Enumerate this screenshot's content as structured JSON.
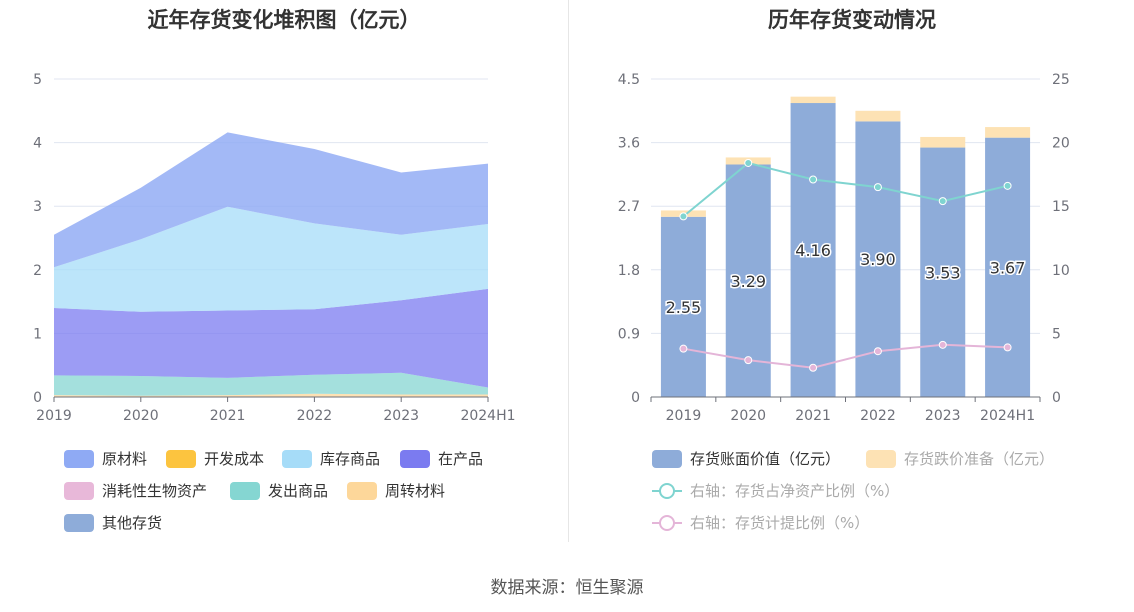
{
  "footer": {
    "source": "数据来源：恒生聚源"
  },
  "chart_data": [
    {
      "type": "area",
      "stacked": true,
      "title": "近年存货变化堆积图（亿元）",
      "categories": [
        "2019",
        "2020",
        "2021",
        "2022",
        "2023",
        "2024H1"
      ],
      "ylim": [
        0,
        5
      ],
      "yticks": [
        "0",
        "1",
        "2",
        "3",
        "4",
        "5"
      ],
      "series": [
        {
          "name": "原材料",
          "color": "#8faaf4",
          "values": [
            0.51,
            0.81,
            1.17,
            1.17,
            0.98,
            0.95
          ]
        },
        {
          "name": "开发成本",
          "color": "#fcc43f",
          "values": [
            0,
            0,
            0,
            0,
            0,
            0
          ]
        },
        {
          "name": "库存商品",
          "color": "#a6dcf8",
          "values": [
            0.64,
            1.14,
            1.63,
            1.35,
            1.03,
            1.02
          ]
        },
        {
          "name": "在产品",
          "color": "#7b7bf0",
          "values": [
            1.06,
            1.01,
            1.06,
            1.03,
            1.14,
            1.55
          ]
        },
        {
          "name": "消耗性生物资产",
          "color": "#e8b8d9",
          "values": [
            0,
            0,
            0,
            0,
            0,
            0
          ]
        },
        {
          "name": "发出商品",
          "color": "#85d6d2",
          "values": [
            0.31,
            0.31,
            0.27,
            0.3,
            0.34,
            0.11
          ]
        },
        {
          "name": "周转材料",
          "color": "#fdd79a",
          "values": [
            0.03,
            0.02,
            0.03,
            0.05,
            0.04,
            0.04
          ]
        },
        {
          "name": "其他存货",
          "color": "#8eacd9",
          "values": [
            0,
            0,
            0,
            0,
            0,
            0
          ]
        }
      ],
      "legend_position": "bottom"
    },
    {
      "type": "bar",
      "title": "历年存货变动情况",
      "categories": [
        "2019",
        "2020",
        "2021",
        "2022",
        "2023",
        "2024H1"
      ],
      "ylim": [
        0,
        4.5
      ],
      "yticks": [
        "0",
        "0.9",
        "1.8",
        "2.7",
        "3.6",
        "4.5"
      ],
      "y2lim": [
        0,
        25
      ],
      "y2ticks": [
        "0",
        "5",
        "10",
        "15",
        "20",
        "25"
      ],
      "bars": [
        {
          "name": "存货账面价值（亿元）",
          "color": "#8eacd9",
          "values": [
            2.55,
            3.29,
            4.16,
            3.9,
            3.53,
            3.67
          ],
          "labels": [
            "2.55",
            "3.29",
            "4.16",
            "3.90",
            "3.53",
            "3.67"
          ]
        },
        {
          "name": "存货跌价准备（亿元）",
          "color": "#fde2b4",
          "values": [
            0.09,
            0.1,
            0.09,
            0.15,
            0.15,
            0.15
          ]
        }
      ],
      "lines": [
        {
          "name": "右轴：存货占净资产比例（%）",
          "color": "#7fd4d0",
          "axis": "right",
          "values": [
            14.2,
            18.4,
            17.1,
            16.5,
            15.4,
            16.6
          ]
        },
        {
          "name": "右轴：存货计提比例（%）",
          "color": "#e4b5d8",
          "axis": "right",
          "values": [
            3.8,
            2.9,
            2.3,
            3.6,
            4.1,
            3.9
          ]
        }
      ],
      "legend_position": "bottom"
    }
  ]
}
